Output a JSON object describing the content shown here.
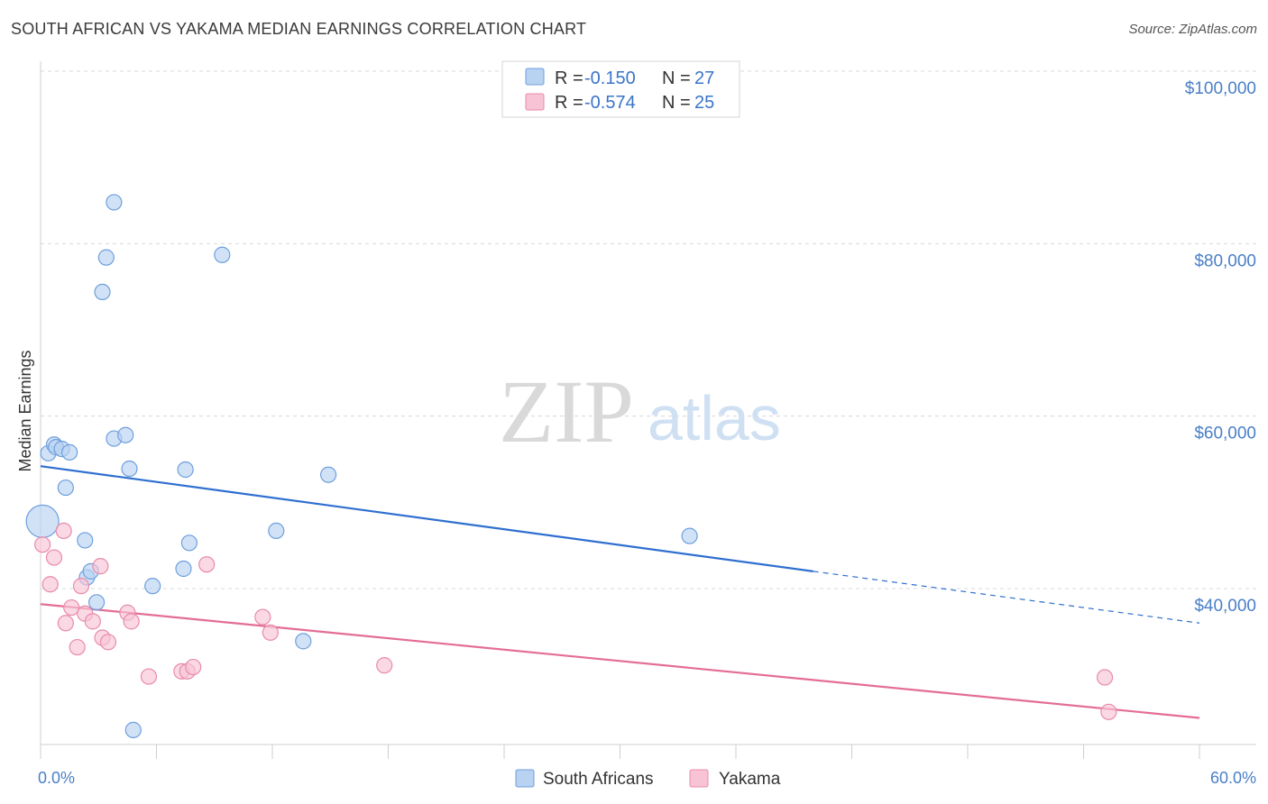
{
  "title": "SOUTH AFRICAN VS YAKAMA MEDIAN EARNINGS CORRELATION CHART",
  "source": "Source: ZipAtlas.com",
  "watermark": {
    "zip": "ZIP",
    "atlas": "atlas"
  },
  "colors": {
    "blue_fill": "#b8d2f2",
    "blue_stroke": "#6e9fdc",
    "blue_line": "#2e6fcf",
    "pink_fill": "#f8c4d5",
    "pink_stroke": "#e98aab",
    "pink_line": "#e46d95",
    "grid": "#d8d8d8",
    "axis_text": "#4a7fc8"
  },
  "legend": {
    "r_label": "R =",
    "n_label": "N =",
    "blue_r": "-0.150",
    "blue_n": "27",
    "pink_r": "-0.574",
    "pink_n": "25"
  },
  "chart_data": {
    "type": "scatter",
    "title": "SOUTH AFRICAN VS YAKAMA MEDIAN EARNINGS CORRELATION CHART",
    "xlabel": "",
    "ylabel": "Median Earnings",
    "xlim": [
      0,
      60
    ],
    "ylim": [
      20000,
      102000
    ],
    "x_tick_labels": [
      "0.0%",
      "60.0%"
    ],
    "y_ticks": [
      40000,
      60000,
      80000,
      100000
    ],
    "y_tick_labels": [
      "$40,000",
      "$60,000",
      "$80,000",
      "$100,000"
    ],
    "grid": true,
    "series": [
      {
        "name": "South Africans",
        "color": "blue",
        "points": [
          [
            0.1,
            47800,
            "large"
          ],
          [
            0.4,
            55700
          ],
          [
            0.7,
            56700
          ],
          [
            0.8,
            56400
          ],
          [
            1.1,
            56200
          ],
          [
            1.3,
            51700
          ],
          [
            1.5,
            55800
          ],
          [
            2.3,
            45600
          ],
          [
            2.4,
            41300
          ],
          [
            2.6,
            42000
          ],
          [
            2.9,
            38400
          ],
          [
            3.2,
            74400
          ],
          [
            3.4,
            78400
          ],
          [
            3.8,
            84800
          ],
          [
            3.8,
            57400
          ],
          [
            4.4,
            57800
          ],
          [
            4.6,
            53900
          ],
          [
            5.8,
            40300
          ],
          [
            7.4,
            42300
          ],
          [
            7.5,
            53800
          ],
          [
            7.7,
            45300
          ],
          [
            9.4,
            78700
          ],
          [
            12.2,
            46700
          ],
          [
            13.6,
            33900
          ],
          [
            14.9,
            53200
          ],
          [
            33.6,
            46100
          ],
          [
            4.8,
            23600
          ]
        ],
        "trend": {
          "x0": 0,
          "y0": 54200,
          "x1": 40,
          "y1": 42000,
          "dashed_to_x": 60,
          "dashed_to_y": 36000
        }
      },
      {
        "name": "Yakama",
        "color": "pink",
        "points": [
          [
            0.1,
            45100
          ],
          [
            0.5,
            40500
          ],
          [
            0.7,
            43600
          ],
          [
            1.2,
            46700
          ],
          [
            1.3,
            36000
          ],
          [
            1.6,
            37800
          ],
          [
            1.9,
            33200
          ],
          [
            2.1,
            40300
          ],
          [
            2.3,
            37100
          ],
          [
            2.7,
            36200
          ],
          [
            3.1,
            42600
          ],
          [
            3.2,
            34300
          ],
          [
            3.5,
            33800
          ],
          [
            4.5,
            37200
          ],
          [
            4.7,
            36200
          ],
          [
            5.6,
            29800
          ],
          [
            7.3,
            30400
          ],
          [
            7.6,
            30400
          ],
          [
            7.9,
            30900
          ],
          [
            8.6,
            42800
          ],
          [
            11.5,
            36700
          ],
          [
            11.9,
            34900
          ],
          [
            17.8,
            31100
          ],
          [
            55.1,
            29700
          ],
          [
            55.3,
            25700
          ]
        ],
        "trend": {
          "x0": 0,
          "y0": 38200,
          "x1": 60,
          "y1": 25000
        }
      }
    ]
  },
  "bottom_legend": [
    "South Africans",
    "Yakama"
  ]
}
